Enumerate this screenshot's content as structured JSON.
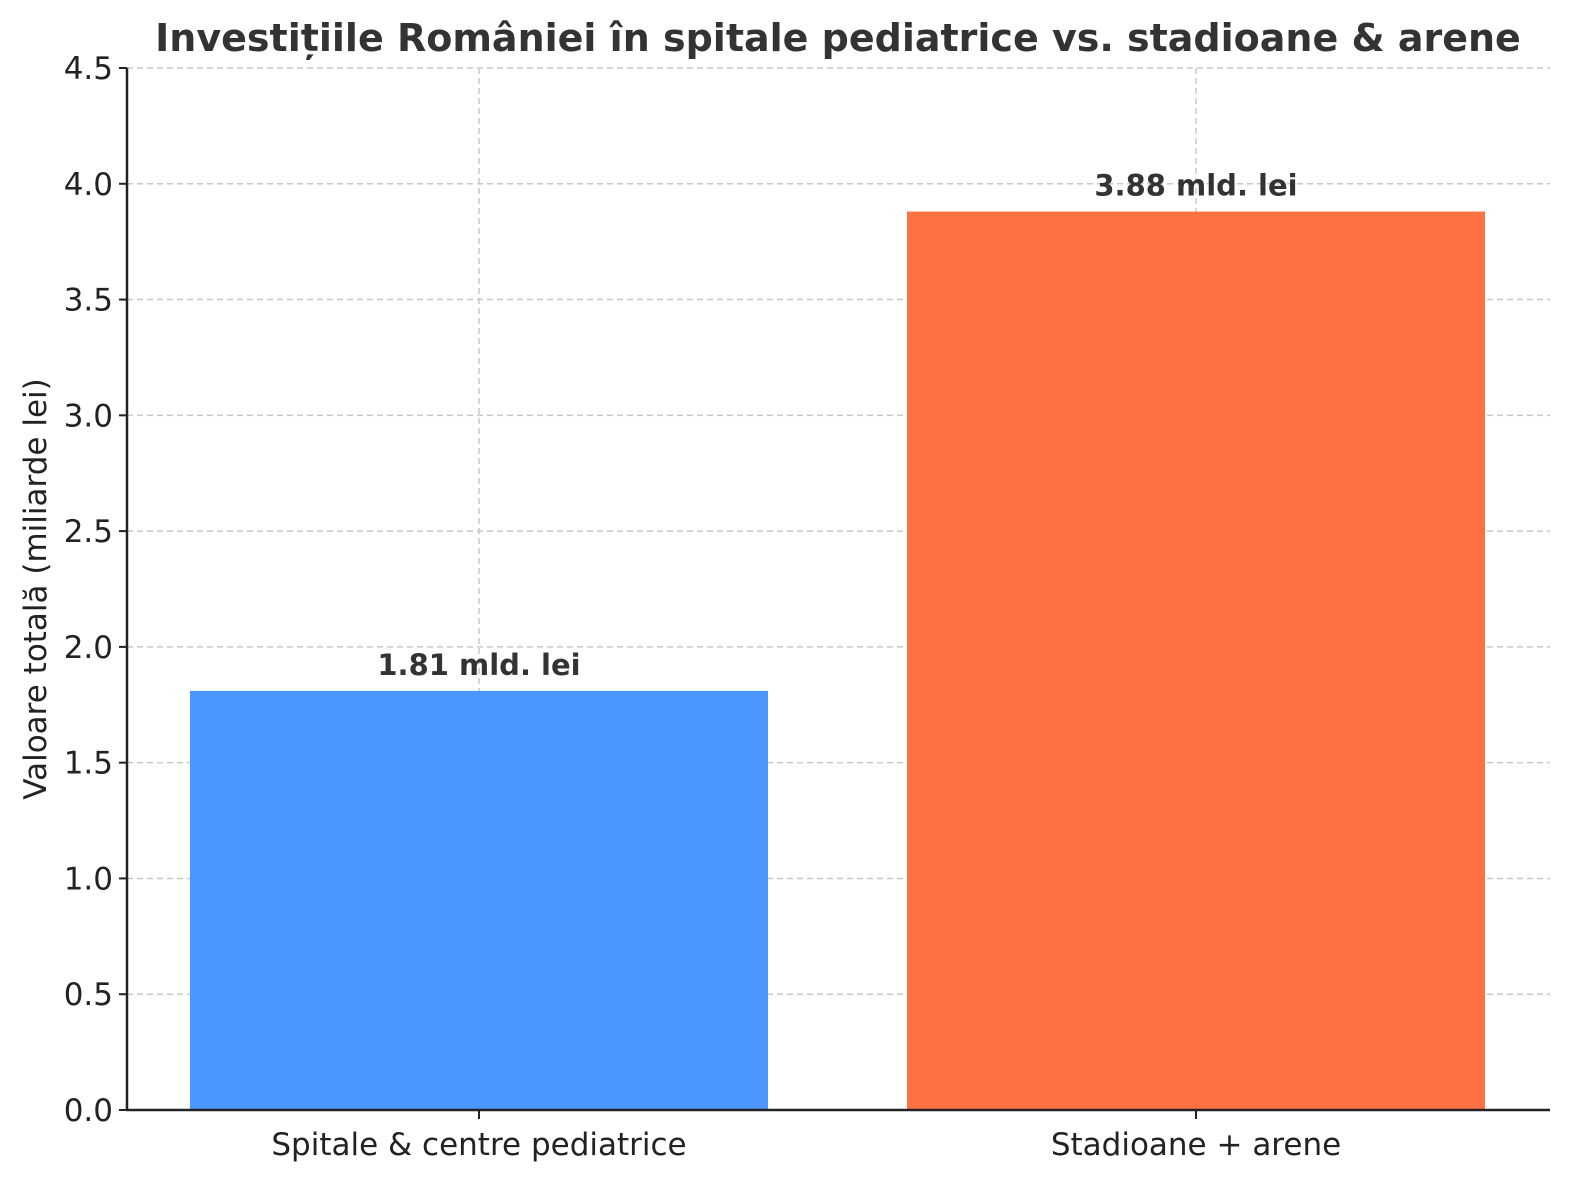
{
  "chart_data": {
    "type": "bar",
    "title": "Investițiile României în spitale pediatrice vs. stadioane & arene",
    "xlabel": "",
    "ylabel": "Valoare totală (miliarde lei)",
    "categories": [
      "Spitale & centre pediatrice",
      "Stadioane + arene"
    ],
    "values": [
      1.81,
      3.88
    ],
    "data_labels": [
      "1.81 mld. lei",
      "3.88 mld. lei"
    ],
    "colors": [
      "#4C97FF",
      "#FF7043"
    ],
    "ylim": [
      0,
      4.5
    ],
    "yticks": [
      "0.0",
      "0.5",
      "1.0",
      "1.5",
      "2.0",
      "2.5",
      "3.0",
      "3.5",
      "4.0",
      "4.5"
    ],
    "grid": true,
    "legend": "none"
  }
}
